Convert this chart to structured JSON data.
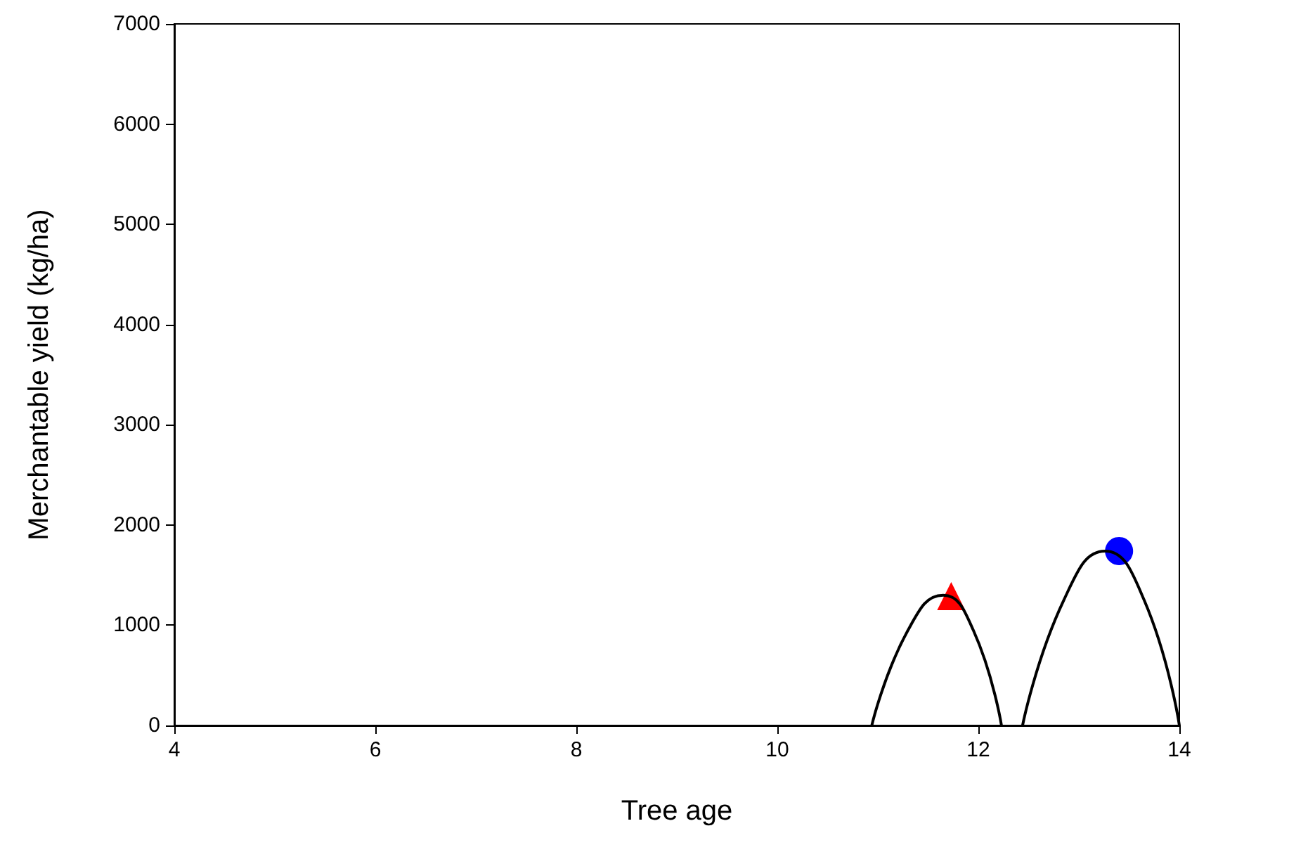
{
  "chart_data": {
    "type": "line",
    "xlabel": "Tree age",
    "ylabel": "Merchantable yield (kg/ha)",
    "xlim": [
      4,
      14
    ],
    "xticks": [
      4,
      6,
      8,
      10,
      12,
      14
    ],
    "ylim": [
      0,
      7000
    ],
    "yticks": [
      0,
      1000,
      2000,
      3000,
      4000,
      5000,
      6000,
      7000
    ],
    "grid": false,
    "line_style": "solid",
    "series": [
      {
        "color": "#000000",
        "marker": "none",
        "x": [
          10.94,
          11.3,
          11.65,
          11.95,
          12.23
        ],
        "values": [
          0,
          950,
          1300,
          950,
          0
        ]
      },
      {
        "color": "#000000",
        "marker": "none",
        "x": [
          12.44,
          12.85,
          13.26,
          13.65,
          14.0
        ],
        "values": [
          0,
          1250,
          1740,
          1250,
          0
        ]
      },
      {
        "type": "scatter",
        "color": "#ff0000",
        "marker": "triangle",
        "x": [
          11.73
        ],
        "values": [
          1290
        ]
      },
      {
        "type": "scatter",
        "color": "#0000ff",
        "marker": "circle",
        "x": [
          13.4
        ],
        "values": [
          1740
        ]
      }
    ]
  }
}
